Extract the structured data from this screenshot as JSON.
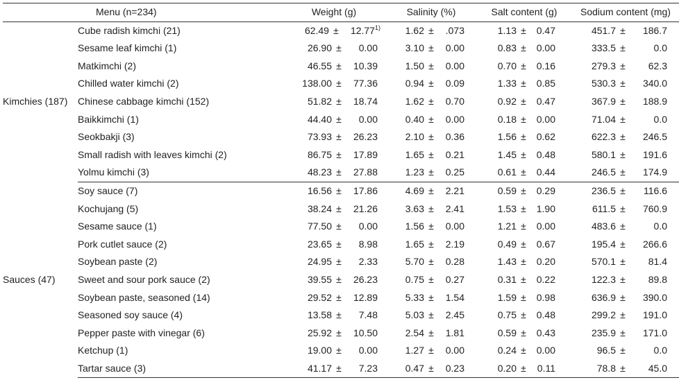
{
  "headers": {
    "menu": "Menu (n=234)",
    "weight": "Weight (g)",
    "salinity": "Salinity (%)",
    "salt": "Salt content (g)",
    "sodium": "Sodium content (mg)"
  },
  "pm": "±",
  "groups": [
    {
      "label": "Kimchies (187)",
      "rows": [
        {
          "menu": "Cube radish kimchi (21)",
          "w": [
            "62.49",
            "12.77"
          ],
          "w_note": "1)",
          "s": [
            "1.62",
            ".073"
          ],
          "salt": [
            "1.13",
            "0.47"
          ],
          "na": [
            "451.7",
            "186.7"
          ]
        },
        {
          "menu": "Sesame leaf kimchi (1)",
          "w": [
            "26.90",
            "0.00"
          ],
          "s": [
            "3.10",
            "0.00"
          ],
          "salt": [
            "0.83",
            "0.00"
          ],
          "na": [
            "333.5",
            "0.0"
          ]
        },
        {
          "menu": "Matkimchi (2)",
          "w": [
            "46.55",
            "10.39"
          ],
          "s": [
            "1.50",
            "0.00"
          ],
          "salt": [
            "0.70",
            "0.16"
          ],
          "na": [
            "279.3",
            "62.3"
          ]
        },
        {
          "menu": "Chilled water kimchi (2)",
          "w": [
            "138.00",
            "77.36"
          ],
          "s": [
            "0.94",
            "0.09"
          ],
          "salt": [
            "1.33",
            "0.85"
          ],
          "na": [
            "530.3",
            "340.0"
          ]
        },
        {
          "menu": "Chinese cabbage kimchi (152)",
          "w": [
            "51.82",
            "18.74"
          ],
          "s": [
            "1.62",
            "0.70"
          ],
          "salt": [
            "0.92",
            "0.47"
          ],
          "na": [
            "367.9",
            "188.9"
          ]
        },
        {
          "menu": "Baikkimchi (1)",
          "w": [
            "44.40",
            "0.00"
          ],
          "s": [
            "0.40",
            "0.00"
          ],
          "salt": [
            "0.18",
            "0.00"
          ],
          "na": [
            "71.04",
            "0.0"
          ]
        },
        {
          "menu": "Seokbakji (3)",
          "w": [
            "73.93",
            "26.23"
          ],
          "s": [
            "2.10",
            "0.36"
          ],
          "salt": [
            "1.56",
            "0.62"
          ],
          "na": [
            "622.3",
            "246.5"
          ]
        },
        {
          "menu": "Small radish with leaves kimchi (2)",
          "w": [
            "86.75",
            "17.89"
          ],
          "s": [
            "1.65",
            "0.21"
          ],
          "salt": [
            "1.45",
            "0.48"
          ],
          "na": [
            "580.1",
            "191.6"
          ]
        },
        {
          "menu": "Yolmu kimchi (3)",
          "w": [
            "48.23",
            "27.88"
          ],
          "s": [
            "1.23",
            "0.25"
          ],
          "salt": [
            "0.61",
            "0.44"
          ],
          "na": [
            "246.5",
            "174.9"
          ]
        }
      ]
    },
    {
      "label": "Sauces (47)",
      "rows": [
        {
          "menu": "Soy sauce (7)",
          "w": [
            "16.56",
            "17.86"
          ],
          "s": [
            "4.69",
            "2.21"
          ],
          "salt": [
            "0.59",
            "0.29"
          ],
          "na": [
            "236.5",
            "116.6"
          ]
        },
        {
          "menu": "Kochujang (5)",
          "w": [
            "38.24",
            "21.26"
          ],
          "s": [
            "3.63",
            "2.41"
          ],
          "salt": [
            "1.53",
            "1.90"
          ],
          "na": [
            "611.5",
            "760.9"
          ]
        },
        {
          "menu": "Sesame sauce (1)",
          "w": [
            "77.50",
            "0.00"
          ],
          "s": [
            "1.56",
            "0.00"
          ],
          "salt": [
            "1.21",
            "0.00"
          ],
          "na": [
            "483.6",
            "0.0"
          ]
        },
        {
          "menu": "Pork cutlet sauce (2)",
          "w": [
            "23.65",
            "8.98"
          ],
          "s": [
            "1.65",
            "2.19"
          ],
          "salt": [
            "0.49",
            "0.67"
          ],
          "na": [
            "195.4",
            "266.6"
          ]
        },
        {
          "menu": "Soybean paste (2)",
          "w": [
            "24.95",
            "2.33"
          ],
          "s": [
            "5.70",
            "0.28"
          ],
          "salt": [
            "1.43",
            "0.20"
          ],
          "na": [
            "570.1",
            "81.4"
          ]
        },
        {
          "menu": "Sweet and sour pork sauce (2)",
          "w": [
            "39.55",
            "26.23"
          ],
          "s": [
            "0.75",
            "0.27"
          ],
          "salt": [
            "0.31",
            "0.22"
          ],
          "na": [
            "122.3",
            "89.8"
          ]
        },
        {
          "menu": "Soybean paste, seasoned (14)",
          "w": [
            "29.52",
            "12.89"
          ],
          "s": [
            "5.33",
            "1.54"
          ],
          "salt": [
            "1.59",
            "0.98"
          ],
          "na": [
            "636.9",
            "390.0"
          ]
        },
        {
          "menu": "Seasoned soy sauce (4)",
          "w": [
            "13.58",
            "7.48"
          ],
          "s": [
            "5.03",
            "2.45"
          ],
          "salt": [
            "0.75",
            "0.48"
          ],
          "na": [
            "299.2",
            "191.0"
          ]
        },
        {
          "menu": "Pepper paste with vinegar (6)",
          "w": [
            "25.92",
            "10.50"
          ],
          "s": [
            "2.54",
            "1.81"
          ],
          "salt": [
            "0.59",
            "0.43"
          ],
          "na": [
            "235.9",
            "171.0"
          ]
        },
        {
          "menu": "Ketchup (1)",
          "w": [
            "19.00",
            "0.00"
          ],
          "s": [
            "1.27",
            "0.00"
          ],
          "salt": [
            "0.24",
            "0.00"
          ],
          "na": [
            "96.5",
            "0.0"
          ]
        },
        {
          "menu": "Tartar sauce (3)",
          "w": [
            "41.17",
            "7.23"
          ],
          "s": [
            "0.47",
            "0.23"
          ],
          "salt": [
            "0.20",
            "0.11"
          ],
          "na": [
            "78.8",
            "45.0"
          ]
        }
      ]
    }
  ]
}
